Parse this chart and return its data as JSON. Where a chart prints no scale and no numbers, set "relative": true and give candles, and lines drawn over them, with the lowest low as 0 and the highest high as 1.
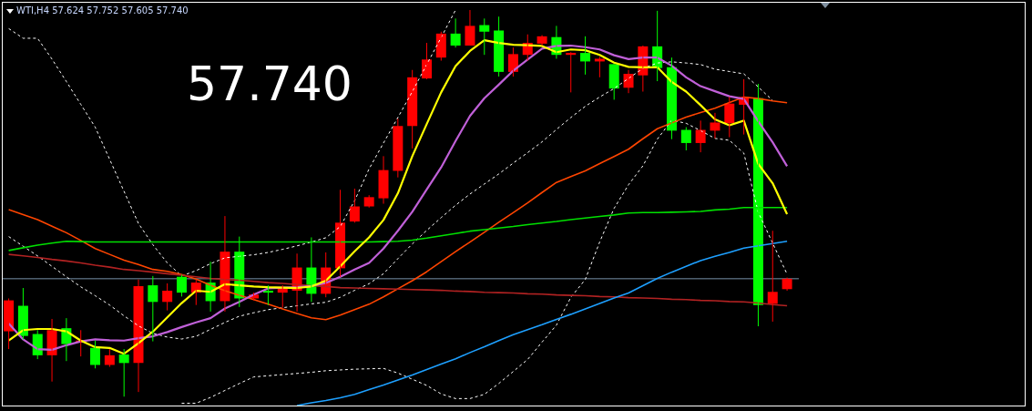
{
  "chart_data": {
    "type": "candlestick",
    "title": "WTI,H4 57.624 57.752 57.605 57.740",
    "annotations": [
      "57.740"
    ],
    "relative": true,
    "categories": [
      null,
      null,
      null,
      null,
      null,
      null,
      null,
      null,
      null,
      null,
      null,
      null,
      null,
      null,
      null,
      null,
      null,
      null,
      null,
      null,
      null,
      null,
      null,
      null,
      null,
      null,
      null,
      null,
      null,
      null,
      null,
      null,
      null,
      null,
      null,
      null,
      null,
      null,
      null,
      null,
      null,
      null,
      null,
      null,
      null,
      null,
      null,
      null,
      null,
      null,
      null,
      null,
      null,
      null,
      null
    ],
    "ohlc": [
      [
        0.169,
        0.254,
        0.123,
        0.249
      ],
      [
        0.235,
        0.281,
        0.148,
        0.157
      ],
      [
        0.162,
        0.172,
        0.097,
        0.107
      ],
      [
        0.107,
        0.201,
        0.039,
        0.172
      ],
      [
        0.177,
        0.203,
        0.092,
        0.136
      ],
      [
        0.14,
        0.172,
        0.104,
        0.145
      ],
      [
        0.126,
        0.145,
        0.073,
        0.082
      ],
      [
        0.082,
        0.123,
        0.077,
        0.107
      ],
      [
        0.109,
        0.123,
        0,
        0.087
      ],
      [
        0.087,
        0.303,
        0.012,
        0.286
      ],
      [
        0.288,
        0.312,
        0.143,
        0.245
      ],
      [
        0.245,
        0.293,
        0.223,
        0.274
      ],
      [
        0.31,
        0.315,
        0.259,
        0.269
      ],
      [
        0.269,
        0.303,
        0.237,
        0.295
      ],
      [
        0.295,
        0.349,
        0.22,
        0.247
      ],
      [
        0.247,
        0.467,
        0.22,
        0.375
      ],
      [
        0.375,
        0.414,
        0.232,
        0.254
      ],
      [
        0.254,
        0.269,
        0.249,
        0.264
      ],
      [
        0.274,
        0.288,
        0.237,
        0.269
      ],
      [
        0.269,
        0.288,
        0.23,
        0.281
      ],
      [
        0.274,
        0.37,
        0.22,
        0.334
      ],
      [
        0.334,
        0.412,
        0.245,
        0.266
      ],
      [
        0.266,
        0.373,
        0.257,
        0.334
      ],
      [
        0.332,
        0.535,
        0.31,
        0.45
      ],
      [
        0.453,
        0.538,
        0.45,
        0.492
      ],
      [
        0.492,
        0.521,
        0.489,
        0.516
      ],
      [
        0.513,
        0.622,
        0.499,
        0.586
      ],
      [
        0.584,
        0.719,
        0.567,
        0.7
      ],
      [
        0.7,
        0.845,
        0.642,
        0.826
      ],
      [
        0.823,
        0.915,
        0.821,
        0.872
      ],
      [
        0.877,
        0.944,
        0.869,
        0.939
      ],
      [
        0.939,
        0.978,
        0.903,
        0.908
      ],
      [
        0.908,
        1,
        0.908,
        0.959
      ],
      [
        0.961,
        0.978,
        0.884,
        0.944
      ],
      [
        0.947,
        0.983,
        0.828,
        0.84
      ],
      [
        0.84,
        0.903,
        0.828,
        0.886
      ],
      [
        0.884,
        0.937,
        0.869,
        0.915
      ],
      [
        0.913,
        0.935,
        0.908,
        0.932
      ],
      [
        0.93,
        0.959,
        0.874,
        0.884
      ],
      [
        0.884,
        0.891,
        0.787,
        0.889
      ],
      [
        0.889,
        0.932,
        0.833,
        0.867
      ],
      [
        0.867,
        0.879,
        0.826,
        0.874
      ],
      [
        0.86,
        0.86,
        0.768,
        0.797
      ],
      [
        0.799,
        0.845,
        0.785,
        0.835
      ],
      [
        0.831,
        0.908,
        0.789,
        0.906
      ],
      [
        0.906,
        0.998,
        0.816,
        0.85
      ],
      [
        0.852,
        0.877,
        0.666,
        0.688
      ],
      [
        0.69,
        0.697,
        0.637,
        0.656
      ],
      [
        0.656,
        0.714,
        0.632,
        0.69
      ],
      [
        0.688,
        0.734,
        0.668,
        0.709
      ],
      [
        0.707,
        0.775,
        0.671,
        0.758
      ],
      [
        0.755,
        0.821,
        0.678,
        0.775
      ],
      [
        0.772,
        0.809,
        0.182,
        0.237
      ],
      [
        0.24,
        0.429,
        0.194,
        0.271
      ],
      [
        0.278,
        0.308,
        0.274,
        0.305
      ]
    ],
    "colors": [
      "#ff0000",
      "#00ff00",
      "#00ff00",
      "#ff0000",
      "#00ff00",
      "#ff0000",
      "#00ff00",
      "#ff0000",
      "#00ff00",
      "#ff0000",
      "#00ff00",
      "#ff0000",
      "#00ff00",
      "#ff0000",
      "#00ff00",
      "#ff0000",
      "#00ff00",
      "#ff0000",
      "#00ff00",
      "#ff0000",
      "#ff0000",
      "#00ff00",
      "#ff0000",
      "#ff0000",
      "#ff0000",
      "#ff0000",
      "#ff0000",
      "#ff0000",
      "#ff0000",
      "#ff0000",
      "#ff0000",
      "#00ff00",
      "#ff0000",
      "#00ff00",
      "#00ff00",
      "#ff0000",
      "#ff0000",
      "#ff0000",
      "#00ff00",
      "#ff0000",
      "#00ff00",
      "#ff0000",
      "#00ff00",
      "#ff0000",
      "#ff0000",
      "#00ff00",
      "#00ff00",
      "#00ff00",
      "#ff0000",
      "#ff0000",
      "#ff0000",
      "#ff0000",
      "#00ff00",
      "#ff0000",
      "#ff0000"
    ],
    "ref_lines": [
      {
        "axis": "y",
        "value": 0.305,
        "color": "#7890a8"
      }
    ],
    "series": [
      {
        "type": "line",
        "color": "#ffffff",
        "line_style": "dashed",
        "values": [
          0.952,
          0.927,
          0.927,
          0.873,
          0.815,
          0.756,
          0.697,
          0.614,
          0.531,
          0.448,
          0.393,
          0.346,
          0.312,
          0.326,
          0.344,
          0.359,
          0.363,
          0.367,
          0.373,
          0.381,
          0.39,
          0.4,
          0.411,
          0.44,
          0.507,
          0.589,
          0.656,
          0.722,
          0.789,
          0.859,
          0.929,
          1.0,
          null,
          null,
          null,
          null,
          null,
          null,
          null,
          null,
          null,
          null,
          null,
          null,
          null,
          null,
          null,
          null,
          null,
          null,
          null,
          null,
          null,
          null,
          null
        ]
      },
      {
        "type": "line",
        "color": "#ffffff",
        "line_style": "dashed",
        "values": [
          null,
          null,
          null,
          null,
          null,
          null,
          null,
          null,
          null,
          null,
          null,
          null,
          -0.017,
          -0.017,
          -0.002,
          0.016,
          0.034,
          0.051,
          0.054,
          0.057,
          0.06,
          0.063,
          0.067,
          0.069,
          0.071,
          0.072,
          0.073,
          0.061,
          0.045,
          0.029,
          0.007,
          -0.005,
          -0.005,
          0.006,
          0.034,
          0.065,
          0.096,
          0.141,
          0.185,
          0.257,
          0.303,
          0.4,
          0.487,
          0.548,
          0.597,
          0.666,
          0.715,
          0.707,
          0.688,
          0.668,
          0.663,
          0.63,
          0.477,
          0.397,
          0.317
        ]
      },
      {
        "type": "line",
        "color": "#ffffff",
        "line_style": "dashed",
        "values": [
          0.414,
          0.389,
          0.364,
          0.337,
          0.31,
          0.284,
          0.261,
          0.237,
          0.209,
          0.183,
          0.164,
          0.154,
          0.149,
          0.156,
          0.174,
          0.192,
          0.208,
          0.217,
          0.225,
          0.23,
          0.235,
          0.24,
          0.244,
          0.257,
          0.275,
          0.292,
          0.318,
          0.357,
          0.395,
          0.43,
          0.463,
          0.495,
          0.524,
          0.55,
          0.576,
          0.604,
          0.631,
          0.659,
          0.691,
          0.722,
          0.751,
          0.775,
          0.797,
          0.823,
          0.849,
          0.863,
          0.866,
          0.863,
          0.859,
          0.847,
          0.841,
          0.835,
          0.801,
          0.766,
          null
        ]
      },
      {
        "type": "line",
        "color": "#ff4500",
        "values": [
          0.484,
          0.471,
          0.458,
          0.441,
          0.424,
          0.404,
          0.383,
          0.368,
          0.353,
          0.342,
          0.329,
          0.324,
          0.316,
          0.304,
          0.288,
          0.274,
          0.262,
          0.251,
          0.239,
          0.227,
          0.215,
          0.204,
          0.199,
          0.211,
          0.225,
          0.239,
          0.258,
          0.279,
          0.3,
          0.323,
          0.349,
          0.375,
          0.4,
          0.425,
          0.451,
          0.476,
          0.501,
          0.528,
          0.554,
          0.569,
          0.584,
          0.603,
          0.621,
          0.64,
          0.667,
          0.693,
          0.708,
          0.723,
          0.735,
          0.746,
          0.761,
          0.775,
          0.771,
          0.765,
          0.76
        ]
      },
      {
        "type": "line",
        "color": "#00e000",
        "values": [
          0.378,
          0.385,
          0.392,
          0.397,
          0.402,
          0.401,
          0.4,
          0.4,
          0.4,
          0.4,
          0.4,
          0.4,
          0.4,
          0.4,
          0.4,
          0.4,
          0.4,
          0.4,
          0.4,
          0.4,
          0.4,
          0.4,
          0.4,
          0.4,
          0.4,
          0.4,
          0.401,
          0.402,
          0.405,
          0.41,
          0.416,
          0.422,
          0.428,
          0.432,
          0.436,
          0.44,
          0.445,
          0.449,
          0.453,
          0.458,
          0.462,
          0.466,
          0.47,
          0.475,
          0.476,
          0.476,
          0.477,
          0.478,
          0.479,
          0.483,
          0.485,
          0.489,
          0.489,
          0.489,
          0.489
        ]
      },
      {
        "type": "line",
        "color": "#b22222",
        "values": [
          0.368,
          0.364,
          0.36,
          0.355,
          0.351,
          0.346,
          0.34,
          0.335,
          0.329,
          0.326,
          0.322,
          0.318,
          0.314,
          0.31,
          0.306,
          0.303,
          0.301,
          0.298,
          0.295,
          0.293,
          0.29,
          0.287,
          0.285,
          0.282,
          0.281,
          0.28,
          0.279,
          0.278,
          0.277,
          0.276,
          0.275,
          0.273,
          0.272,
          0.27,
          0.269,
          0.268,
          0.266,
          0.265,
          0.263,
          0.262,
          0.261,
          0.259,
          0.258,
          0.256,
          0.255,
          0.254,
          0.252,
          0.251,
          0.249,
          0.248,
          0.246,
          0.245,
          0.242,
          0.238,
          0.235
        ]
      },
      {
        "type": "line",
        "color": "#1ea0ff",
        "values": [
          null,
          null,
          null,
          null,
          null,
          null,
          null,
          null,
          null,
          null,
          null,
          null,
          null,
          null,
          null,
          null,
          null,
          null,
          null,
          null,
          -0.023,
          -0.016,
          -0.01,
          -0.003,
          0.006,
          0.018,
          0.03,
          0.043,
          0.056,
          0.07,
          0.084,
          0.098,
          0.114,
          0.129,
          0.145,
          0.16,
          0.173,
          0.186,
          0.2,
          0.213,
          0.227,
          0.241,
          0.255,
          0.268,
          0.287,
          0.306,
          0.322,
          0.337,
          0.352,
          0.363,
          0.373,
          0.384,
          0.39,
          0.396,
          0.402
        ]
      },
      {
        "type": "line",
        "color": "#c060d8",
        "values": [
          0.189,
          0.148,
          0.123,
          0.121,
          0.133,
          0.143,
          0.148,
          0.146,
          0.145,
          0.151,
          0.156,
          0.167,
          0.18,
          0.192,
          0.203,
          0.228,
          0.245,
          0.264,
          0.28,
          0.282,
          0.283,
          0.286,
          0.294,
          0.31,
          0.329,
          0.346,
          0.383,
          0.429,
          0.478,
          0.536,
          0.593,
          0.661,
          0.726,
          0.772,
          0.807,
          0.843,
          0.872,
          0.9,
          0.907,
          0.908,
          0.904,
          0.898,
          0.883,
          0.873,
          0.877,
          0.877,
          0.856,
          0.826,
          0.803,
          0.79,
          0.777,
          0.77,
          0.712,
          0.658,
          0.596
        ]
      },
      {
        "type": "line",
        "color": "#ffff00",
        "values": [
          0.145,
          0.172,
          0.175,
          0.175,
          0.169,
          0.145,
          0.128,
          0.126,
          0.111,
          0.138,
          0.168,
          0.205,
          0.242,
          0.274,
          0.271,
          0.291,
          0.288,
          0.285,
          0.283,
          0.282,
          0.281,
          0.285,
          0.3,
          0.337,
          0.376,
          0.412,
          0.457,
          0.526,
          0.622,
          0.705,
          0.787,
          0.855,
          0.894,
          0.922,
          0.915,
          0.91,
          0.909,
          0.907,
          0.891,
          0.898,
          0.896,
          0.884,
          0.864,
          0.853,
          0.852,
          0.852,
          0.814,
          0.789,
          0.754,
          0.717,
          0.702,
          0.714,
          0.602,
          0.552,
          0.472
        ]
      }
    ]
  }
}
